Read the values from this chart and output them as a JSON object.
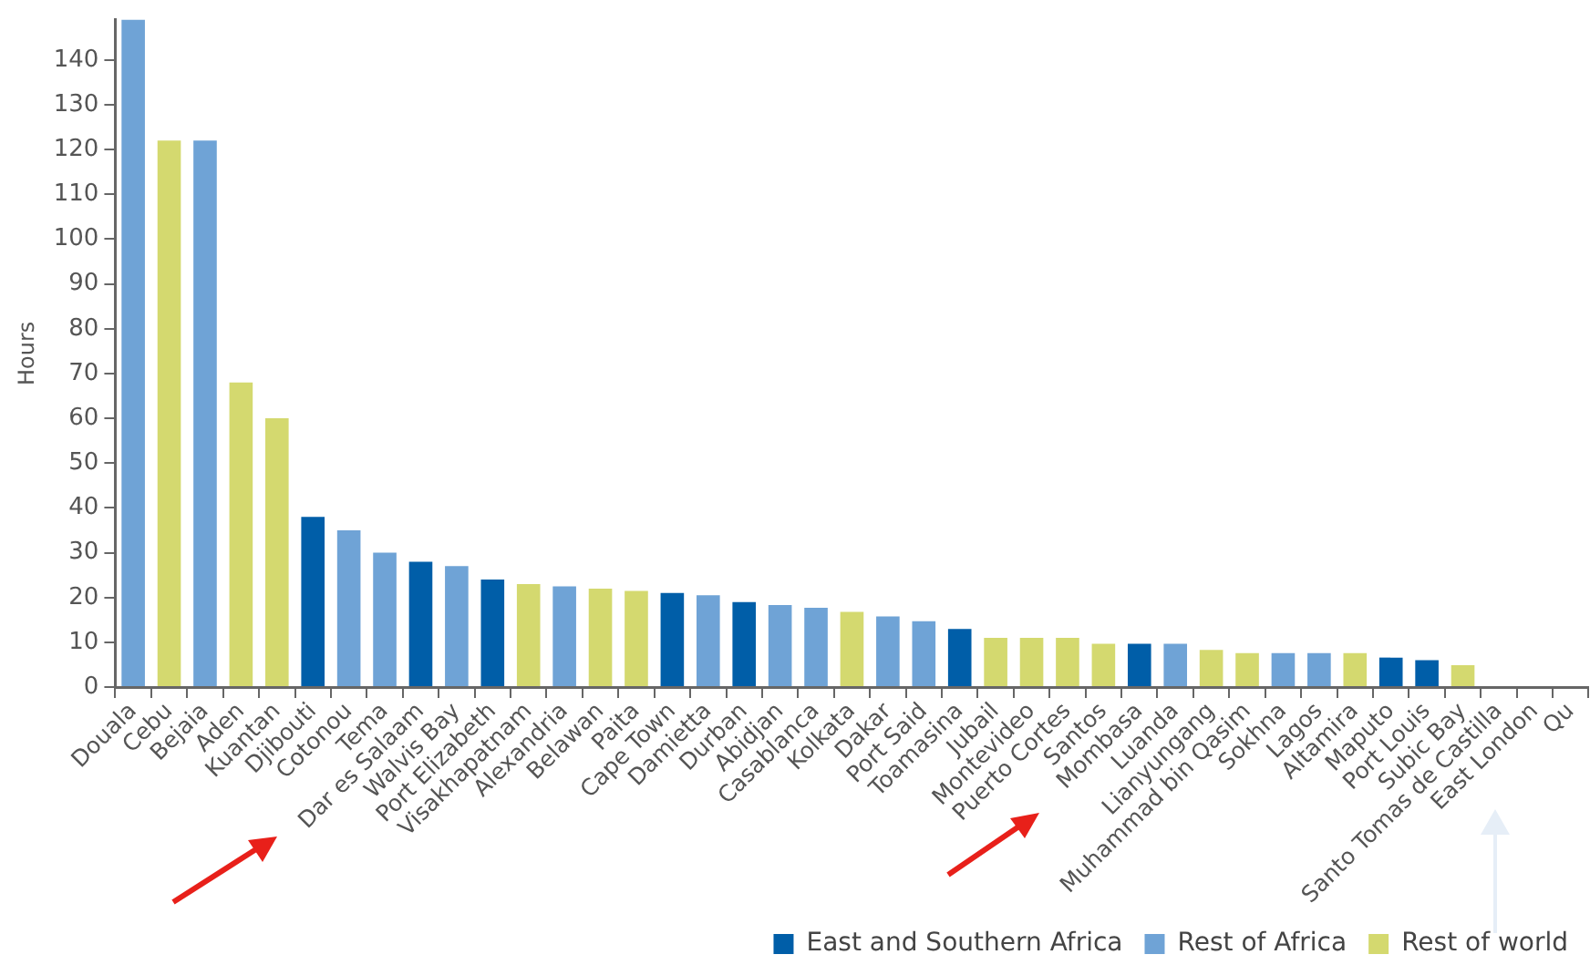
{
  "chart_data": {
    "type": "bar",
    "ylabel": "Hours",
    "categories": [
      "Douala",
      "Cebu",
      "Bejaia",
      "Aden",
      "Kuantan",
      "Djibouti",
      "Cotonou",
      "Tema",
      "Dar es Salaam",
      "Walvis Bay",
      "Port Elizabeth",
      "Visakhapatnam",
      "Alexandria",
      "Belawan",
      "Paita",
      "Cape Town",
      "Damietta",
      "Durban",
      "Abidjan",
      "Casablanca",
      "Kolkata",
      "Dakar",
      "Port Said",
      "Toamasina",
      "Jubail",
      "Montevideo",
      "Puerto Cortes",
      "Santos",
      "Mombasa",
      "Luanda",
      "Lianyungang",
      "Muhammad bin Qasim",
      "Sokhna",
      "Lagos",
      "Altamira",
      "Maputo",
      "Port Louis",
      "Subic Bay",
      "Santo Tomas de Castilla",
      "East London",
      "Qu"
    ],
    "series": [
      {
        "name": "East and Southern Africa",
        "color": "#005ea8",
        "values": [
          null,
          null,
          null,
          null,
          null,
          38,
          null,
          null,
          28,
          null,
          24,
          null,
          null,
          null,
          null,
          21,
          null,
          19,
          null,
          null,
          null,
          null,
          null,
          13,
          null,
          null,
          null,
          null,
          9.7,
          null,
          null,
          null,
          null,
          null,
          null,
          6.6,
          6,
          null,
          null,
          null,
          null
        ]
      },
      {
        "name": "Rest of Africa",
        "color": "#6fa3d6",
        "values": [
          149,
          null,
          122,
          null,
          null,
          null,
          35,
          30,
          null,
          27,
          null,
          null,
          22.5,
          null,
          null,
          null,
          20.5,
          null,
          18.3,
          17.7,
          null,
          15.8,
          14.7,
          null,
          null,
          null,
          null,
          null,
          null,
          9.7,
          null,
          null,
          7.6,
          7.6,
          null,
          null,
          null,
          null,
          null,
          null,
          null
        ]
      },
      {
        "name": "Rest of world",
        "color": "#d4d96f",
        "values": [
          null,
          122,
          null,
          68,
          60,
          null,
          null,
          null,
          null,
          null,
          null,
          23,
          null,
          22,
          21.5,
          null,
          null,
          null,
          null,
          null,
          16.8,
          null,
          null,
          null,
          11,
          11,
          11,
          9.7,
          null,
          null,
          8.3,
          7.6,
          null,
          null,
          7.6,
          null,
          null,
          4.9,
          null,
          null,
          null
        ]
      }
    ],
    "ylim": [
      0,
      149
    ],
    "yticks": [
      0,
      10,
      20,
      30,
      40,
      50,
      60,
      70,
      80,
      90,
      100,
      110,
      120,
      130,
      140
    ],
    "legend": "bottom right"
  }
}
